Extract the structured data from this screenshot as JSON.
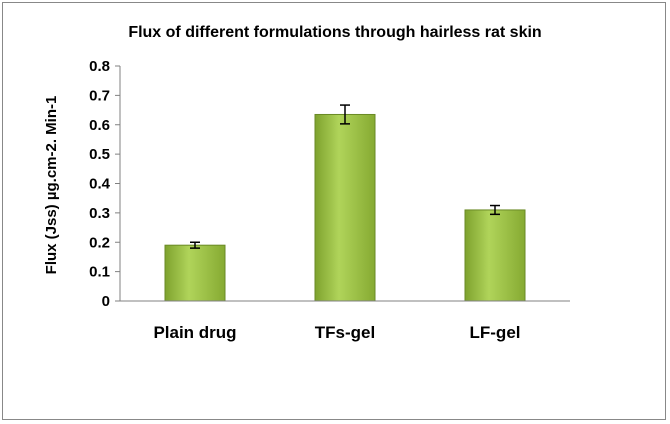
{
  "chart_data": {
    "type": "bar",
    "title": "Flux of different formulations through hairless rat skin",
    "xlabel": "",
    "ylabel": "Flux (Jss) µg.cm-2. Min-1",
    "categories": [
      "Plain drug",
      "TFs-gel",
      "LF-gel"
    ],
    "values": [
      0.19,
      0.635,
      0.31
    ],
    "errors": [
      0.01,
      0.032,
      0.015
    ],
    "ylim": [
      0,
      0.8
    ],
    "yticks": [
      "0",
      "0.1",
      "0.2",
      "0.3",
      "0.4",
      "0.5",
      "0.6",
      "0.7",
      "0.8"
    ],
    "grid": false,
    "legend": "none",
    "bar_color": "#8db33a",
    "bar_edge_color": "#6a8a26"
  }
}
